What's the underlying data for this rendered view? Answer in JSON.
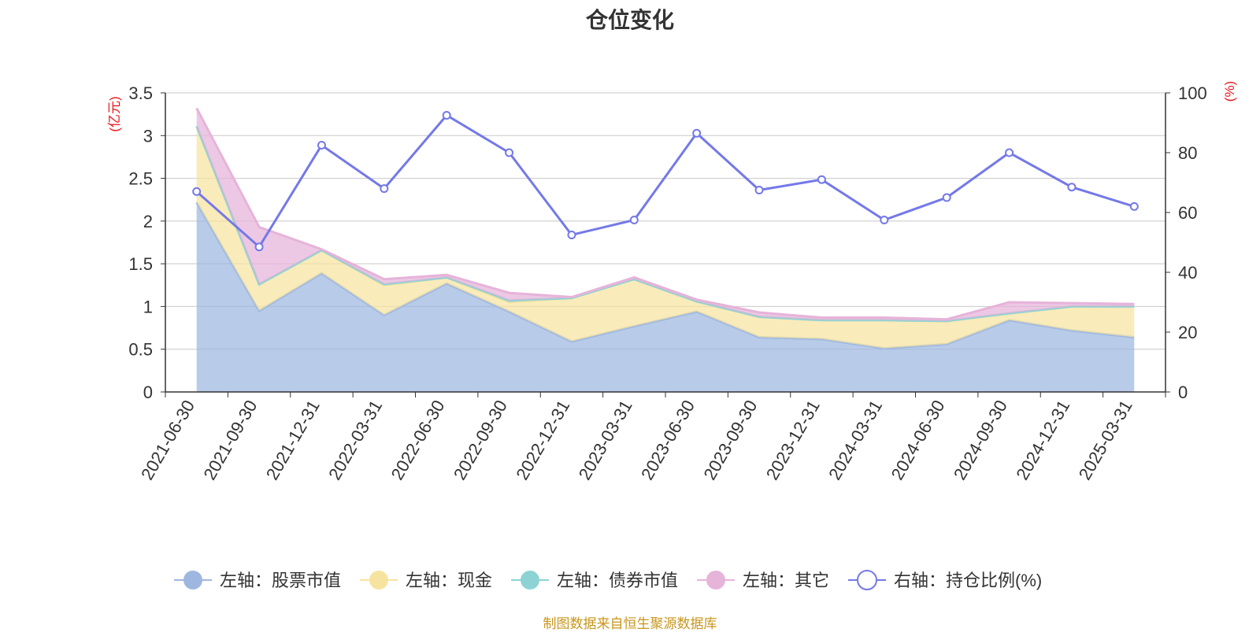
{
  "title": "仓位变化",
  "source": "制图数据来自恒生聚源数据库",
  "left_unit": "(亿元)",
  "right_unit": "(%)",
  "chart_data": {
    "type": "area",
    "title": "仓位变化",
    "categories": [
      "2021-06-30",
      "2021-09-30",
      "2021-12-31",
      "2022-03-31",
      "2022-06-30",
      "2022-09-30",
      "2022-12-31",
      "2023-03-31",
      "2023-06-30",
      "2023-09-30",
      "2023-12-31",
      "2024-03-31",
      "2024-06-30",
      "2024-09-30",
      "2024-12-31",
      "2025-03-31"
    ],
    "left_axis": {
      "unit": "(亿元)",
      "ylim": [
        0,
        3.5
      ],
      "ticks": [
        "0",
        "0.5",
        "1",
        "1.5",
        "2",
        "2.5",
        "3",
        "3.5"
      ]
    },
    "right_axis": {
      "unit": "(%)",
      "ylim": [
        0,
        100
      ],
      "ticks": [
        "0",
        "20",
        "40",
        "60",
        "80",
        "100"
      ]
    },
    "stacked": true,
    "series": [
      {
        "name": "左轴：股票市值",
        "axis": "left",
        "type": "area",
        "color": "#9db7e0",
        "values": [
          2.22,
          0.95,
          1.39,
          0.9,
          1.27,
          0.94,
          0.59,
          0.77,
          0.94,
          0.64,
          0.62,
          0.51,
          0.56,
          0.84,
          0.72,
          0.64
        ]
      },
      {
        "name": "左轴：现金",
        "axis": "left",
        "type": "area",
        "color": "#f7e3a0",
        "values": [
          0.89,
          0.31,
          0.27,
          0.35,
          0.07,
          0.11,
          0.51,
          0.55,
          0.12,
          0.24,
          0.22,
          0.33,
          0.27,
          0.08,
          0.28,
          0.36
        ]
      },
      {
        "name": "左轴：债券市值",
        "axis": "left",
        "type": "area",
        "color": "#8ed3d3",
        "values": [
          0,
          0,
          0,
          0.01,
          0,
          0.02,
          0,
          0,
          0,
          0,
          0,
          0,
          0,
          0,
          0,
          0
        ]
      },
      {
        "name": "左轴：其它",
        "axis": "left",
        "type": "area",
        "color": "#e6b3d9",
        "values": [
          0.21,
          0.67,
          0.01,
          0.06,
          0.03,
          0.09,
          0.01,
          0.02,
          0.02,
          0.05,
          0.03,
          0.03,
          0.02,
          0.13,
          0.04,
          0.03
        ]
      },
      {
        "name": "右轴：持仓比例(%)",
        "axis": "right",
        "type": "line",
        "color": "#7479e8",
        "values": [
          67.0,
          48.5,
          82.5,
          68.0,
          92.5,
          80.0,
          52.5,
          57.5,
          86.5,
          67.5,
          71.0,
          57.5,
          65.0,
          80.0,
          68.5,
          62.0
        ]
      }
    ],
    "grid": true,
    "legend_position": "bottom"
  }
}
